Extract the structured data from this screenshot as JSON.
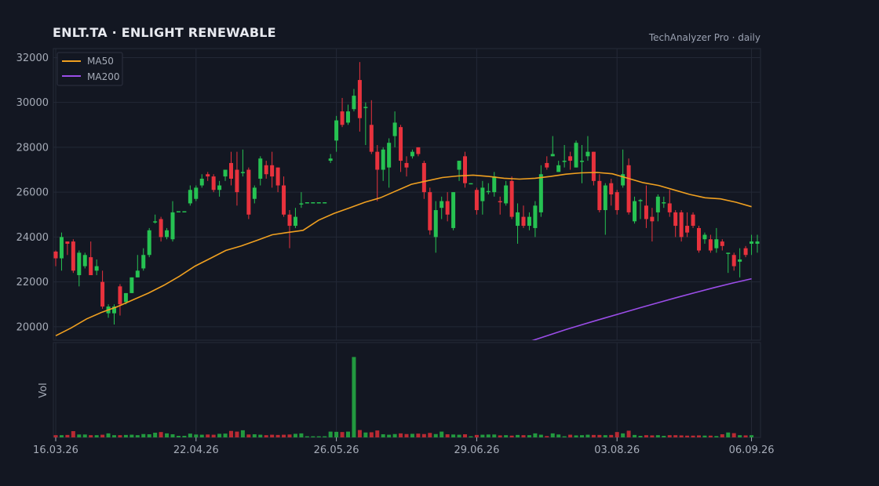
{
  "header": {
    "title": "ENLT.TA  ·  ENLIGHT RENEWABLE",
    "subtitle": "TechAnalyzer Pro · daily"
  },
  "colors": {
    "background": "#131722",
    "up": "#26c252",
    "down": "#e8323d",
    "ma50": "#f0a020",
    "ma200": "#9b4de8",
    "grid": "#232836"
  },
  "chart_data": {
    "type": "candlestick",
    "title": "ENLT.TA  ·  ENLIGHT RENEWABLE",
    "subtitle": "TechAnalyzer Pro · daily",
    "ylim": [
      19400,
      32400
    ],
    "y_ticks": [
      20000,
      22000,
      24000,
      26000,
      28000,
      30000,
      32000
    ],
    "x_tick_labels": [
      "16.03.26",
      "22.04.26",
      "26.05.26",
      "29.06.26",
      "03.08.26",
      "06.09.26"
    ],
    "x_tick_index": [
      0,
      24,
      48,
      72,
      96,
      119
    ],
    "volume_label": "Vol",
    "legend": {
      "position": "top-left",
      "items": [
        "MA50",
        "MA200"
      ]
    },
    "ohlc": [
      [
        23350,
        23400,
        22700,
        23050
      ],
      [
        23050,
        24200,
        22500,
        24000
      ],
      [
        23800,
        23800,
        23200,
        23700
      ],
      [
        23800,
        23900,
        22400,
        22500
      ],
      [
        22300,
        23400,
        21800,
        23300
      ],
      [
        22700,
        23300,
        22600,
        23200
      ],
      [
        23100,
        23800,
        22300,
        22300
      ],
      [
        22500,
        23000,
        22300,
        22700
      ],
      [
        22000,
        22500,
        20800,
        20900
      ],
      [
        20600,
        21000,
        20400,
        20900
      ],
      [
        20600,
        21000,
        20100,
        20900
      ],
      [
        21800,
        21900,
        20500,
        21000
      ],
      [
        21100,
        21500,
        21000,
        21500
      ],
      [
        21500,
        22200,
        21500,
        22200
      ],
      [
        22200,
        23200,
        22200,
        22500
      ],
      [
        22600,
        23500,
        22500,
        23200
      ],
      [
        23200,
        24400,
        23100,
        24300
      ],
      [
        24700,
        25000,
        24600,
        24700
      ],
      [
        24800,
        24900,
        23800,
        24000
      ],
      [
        24000,
        24400,
        23900,
        24300
      ],
      [
        23900,
        25600,
        23800,
        25100
      ],
      [
        25150,
        25150,
        25150,
        25150
      ],
      [
        25150,
        25150,
        25150,
        25150
      ],
      [
        25500,
        26300,
        25400,
        26100
      ],
      [
        25700,
        26300,
        25600,
        26200
      ],
      [
        26300,
        26800,
        26200,
        26600
      ],
      [
        26800,
        26900,
        26500,
        26700
      ],
      [
        26700,
        26800,
        26000,
        26100
      ],
      [
        26100,
        26500,
        25800,
        26300
      ],
      [
        26700,
        27000,
        26500,
        27000
      ],
      [
        27300,
        27800,
        26300,
        26600
      ],
      [
        27000,
        27800,
        25400,
        26000
      ],
      [
        26900,
        27900,
        26700,
        26900
      ],
      [
        27000,
        27100,
        24800,
        25000
      ],
      [
        25700,
        26300,
        25500,
        26200
      ],
      [
        26600,
        27600,
        26300,
        27500
      ],
      [
        27200,
        27400,
        26600,
        26800
      ],
      [
        27200,
        27800,
        26200,
        26700
      ],
      [
        27100,
        27100,
        26000,
        26300
      ],
      [
        26300,
        26700,
        24900,
        25000
      ],
      [
        25000,
        25200,
        23500,
        24500
      ],
      [
        24500,
        25300,
        24400,
        24900
      ],
      [
        25500,
        26000,
        25300,
        25500
      ],
      [
        25550,
        25550,
        25550,
        25550
      ],
      [
        25550,
        25550,
        25550,
        25550
      ],
      [
        25550,
        25550,
        25550,
        25550
      ],
      [
        25550,
        25550,
        25550,
        25550
      ],
      [
        27400,
        27700,
        27300,
        27500
      ],
      [
        28300,
        29400,
        27800,
        29200
      ],
      [
        29600,
        30200,
        28900,
        29000
      ],
      [
        29100,
        29900,
        29000,
        29600
      ],
      [
        29700,
        30600,
        29600,
        30300
      ],
      [
        31000,
        31800,
        28700,
        29300
      ],
      [
        29800,
        30000,
        28100,
        29800
      ],
      [
        29000,
        30100,
        27700,
        27800
      ],
      [
        27800,
        28100,
        25600,
        27000
      ],
      [
        27000,
        28000,
        26500,
        27900
      ],
      [
        27100,
        28400,
        26200,
        28200
      ],
      [
        28500,
        29600,
        28000,
        29100
      ],
      [
        28900,
        29000,
        26900,
        27400
      ],
      [
        27300,
        27600,
        26700,
        27100
      ],
      [
        27600,
        27900,
        27500,
        27800
      ],
      [
        28000,
        28000,
        27600,
        27700
      ],
      [
        27300,
        27400,
        25700,
        26000
      ],
      [
        26000,
        26200,
        24100,
        24300
      ],
      [
        24000,
        25600,
        23300,
        25200
      ],
      [
        25300,
        25800,
        24800,
        25600
      ],
      [
        25600,
        26000,
        24700,
        25000
      ],
      [
        24400,
        26000,
        24300,
        26000
      ],
      [
        27000,
        27400,
        26500,
        27400
      ],
      [
        27600,
        27800,
        26200,
        26400
      ],
      [
        26400,
        26400,
        26400,
        26400
      ],
      [
        26100,
        26200,
        25000,
        25200
      ],
      [
        25600,
        26500,
        25000,
        26200
      ],
      [
        26050,
        26400,
        25900,
        26050
      ],
      [
        26000,
        26900,
        25800,
        26700
      ],
      [
        25600,
        25800,
        25000,
        25550
      ],
      [
        25500,
        26500,
        25400,
        26300
      ],
      [
        26500,
        26700,
        24800,
        24900
      ],
      [
        24500,
        25500,
        23700,
        25100
      ],
      [
        24900,
        25400,
        24400,
        24500
      ],
      [
        24500,
        25100,
        24300,
        24900
      ],
      [
        24400,
        25600,
        24000,
        25400
      ],
      [
        25100,
        27200,
        24900,
        26800
      ],
      [
        27300,
        27600,
        27000,
        27100
      ],
      [
        27600,
        28500,
        27600,
        27700
      ],
      [
        26900,
        27400,
        26900,
        27200
      ],
      [
        27350,
        28100,
        27100,
        27400
      ],
      [
        27600,
        27800,
        27000,
        27400
      ],
      [
        27100,
        28300,
        27100,
        28200
      ],
      [
        27400,
        28100,
        26400,
        27400
      ],
      [
        27600,
        28500,
        27400,
        27800
      ],
      [
        27800,
        27800,
        26300,
        26500
      ],
      [
        26500,
        26800,
        25100,
        25200
      ],
      [
        25200,
        26400,
        24100,
        26300
      ],
      [
        26400,
        26600,
        25400,
        25900
      ],
      [
        26000,
        26100,
        25000,
        25200
      ],
      [
        26300,
        27900,
        26200,
        26800
      ],
      [
        27200,
        27500,
        25000,
        25100
      ],
      [
        24700,
        25800,
        24600,
        25600
      ],
      [
        25650,
        25700,
        24800,
        25650
      ],
      [
        25400,
        26300,
        24400,
        24800
      ],
      [
        24900,
        25300,
        23800,
        24700
      ],
      [
        25100,
        25900,
        24700,
        25800
      ],
      [
        25550,
        25800,
        25300,
        25550
      ],
      [
        25500,
        26100,
        24900,
        25100
      ],
      [
        25100,
        25200,
        24000,
        24500
      ],
      [
        25100,
        25200,
        23800,
        24000
      ],
      [
        24500,
        25100,
        24000,
        24200
      ],
      [
        25000,
        25100,
        24400,
        24500
      ],
      [
        24400,
        24500,
        23300,
        23400
      ],
      [
        23900,
        24200,
        23700,
        24100
      ],
      [
        23900,
        24100,
        23300,
        23400
      ],
      [
        23500,
        24400,
        23300,
        23900
      ],
      [
        23800,
        23900,
        23400,
        23600
      ],
      [
        23300,
        23300,
        22400,
        23300
      ],
      [
        23200,
        23300,
        22500,
        22700
      ],
      [
        22900,
        23500,
        22200,
        23000
      ],
      [
        23500,
        23600,
        23100,
        23200
      ],
      [
        23700,
        24100,
        23200,
        23800
      ],
      [
        23700,
        24100,
        23300,
        23800
      ]
    ],
    "volume": [
      1.0,
      1.0,
      1.1,
      2.8,
      1.3,
      1.3,
      1.0,
      1.0,
      1.2,
      1.8,
      1.0,
      1.0,
      1.1,
      1.2,
      1.0,
      1.5,
      1.4,
      2.1,
      2.4,
      1.8,
      1.4,
      0.7,
      0.7,
      1.7,
      1.3,
      1.2,
      1.3,
      1.2,
      1.6,
      1.7,
      2.9,
      2.6,
      3.2,
      1.3,
      1.4,
      1.2,
      1.0,
      1.2,
      1.1,
      1.2,
      1.3,
      1.6,
      1.8,
      0.5,
      0.5,
      0.5,
      0.5,
      2.6,
      2.5,
      2.4,
      2.6,
      36.0,
      3.3,
      2.2,
      2.3,
      3.1,
      1.4,
      1.2,
      1.5,
      1.8,
      1.5,
      1.6,
      1.7,
      1.5,
      2.0,
      1.5,
      2.6,
      1.4,
      1.3,
      1.2,
      1.4,
      0.5,
      1.1,
      1.2,
      1.3,
      1.3,
      0.9,
      1.0,
      0.8,
      1.1,
      1.0,
      1.0,
      1.8,
      1.2,
      0.6,
      1.8,
      1.3,
      0.5,
      1.2,
      0.9,
      1.0,
      1.2,
      1.1,
      1.1,
      1.0,
      1.1,
      2.4,
      1.8,
      3.0,
      1.1,
      0.7,
      1.0,
      0.9,
      1.0,
      0.7,
      1.0,
      1.0,
      0.9,
      0.8,
      0.8,
      0.9,
      0.8,
      0.8,
      0.6,
      1.4,
      2.2,
      1.9,
      1.0,
      0.9,
      1.0
    ],
    "series": [
      {
        "name": "MA50",
        "x_range": [
          0,
          119
        ],
        "values": [
          19600,
          19950,
          20350,
          20650,
          20900,
          21200,
          21500,
          21850,
          22250,
          22700,
          23050,
          23400,
          23600,
          23850,
          24100,
          24200,
          24300,
          24750,
          25050,
          25300,
          25550,
          25750,
          26050,
          26350,
          26500,
          26650,
          26720,
          26760,
          26700,
          26620,
          26580,
          26620,
          26700,
          26800,
          26860,
          26880,
          26820,
          26620,
          26420,
          26300,
          26100,
          25900,
          25750,
          25700,
          25550,
          25350
        ]
      },
      {
        "name": "MA200",
        "x_range": [
          81,
          119
        ],
        "values": [
          19340,
          19610,
          19880,
          20130,
          20370,
          20610,
          20850,
          21080,
          21310,
          21530,
          21750,
          21950,
          22140
        ]
      }
    ]
  }
}
